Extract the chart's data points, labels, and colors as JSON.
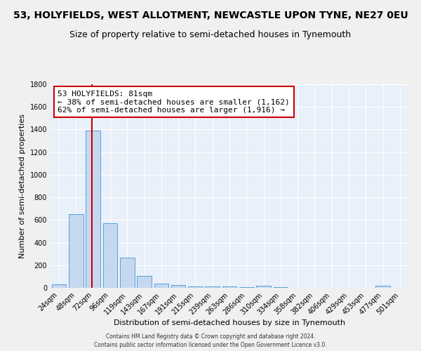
{
  "title": "53, HOLYFIELDS, WEST ALLOTMENT, NEWCASTLE UPON TYNE, NE27 0EU",
  "subtitle": "Size of property relative to semi-detached houses in Tynemouth",
  "xlabel": "Distribution of semi-detached houses by size in Tynemouth",
  "ylabel": "Number of semi-detached properties",
  "bar_labels": [
    "24sqm",
    "48sqm",
    "72sqm",
    "96sqm",
    "119sqm",
    "143sqm",
    "167sqm",
    "191sqm",
    "215sqm",
    "239sqm",
    "263sqm",
    "286sqm",
    "310sqm",
    "334sqm",
    "358sqm",
    "382sqm",
    "406sqm",
    "429sqm",
    "453sqm",
    "477sqm",
    "501sqm"
  ],
  "bar_values": [
    30,
    650,
    1390,
    570,
    270,
    105,
    35,
    25,
    10,
    15,
    10,
    5,
    20,
    5,
    0,
    0,
    0,
    0,
    0,
    20,
    0
  ],
  "bar_color": "#c5d8f0",
  "bar_edge_color": "#5a9fd4",
  "vline_color": "#cc0000",
  "vline_x": 1.925,
  "annotation_title": "53 HOLYFIELDS: 81sqm",
  "annotation_line1": "← 38% of semi-detached houses are smaller (1,162)",
  "annotation_line2": "62% of semi-detached houses are larger (1,916) →",
  "footer1": "Contains HM Land Registry data © Crown copyright and database right 2024.",
  "footer2": "Contains public sector information licensed under the Open Government Licence v3.0.",
  "ylim": [
    0,
    1800
  ],
  "yticks": [
    0,
    200,
    400,
    600,
    800,
    1000,
    1200,
    1400,
    1600,
    1800
  ],
  "background_color": "#e8f0fa",
  "grid_color": "#ffffff",
  "title_fontsize": 10,
  "subtitle_fontsize": 9,
  "axis_label_fontsize": 8,
  "tick_fontsize": 7,
  "annotation_fontsize": 8,
  "footer_fontsize": 5.5
}
